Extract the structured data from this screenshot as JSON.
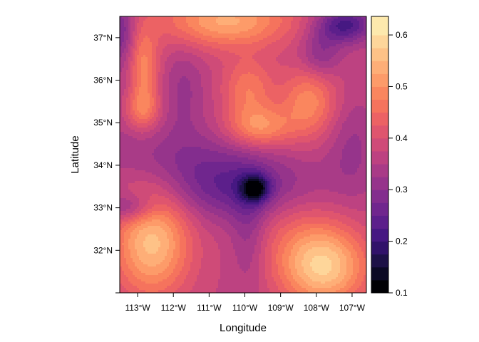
{
  "chart_data": {
    "type": "heatmap",
    "subtype": "filled-contour map",
    "xlabel": "Longitude",
    "ylabel": "Latitude",
    "xlim": [
      -113.5,
      -106.6
    ],
    "ylim": [
      31.0,
      37.5
    ],
    "x_ticks": [
      {
        "value": -113,
        "label": "113°W"
      },
      {
        "value": -112,
        "label": "112°W"
      },
      {
        "value": -111,
        "label": "111°W"
      },
      {
        "value": -110,
        "label": "110°W"
      },
      {
        "value": -109,
        "label": "109°W"
      },
      {
        "value": -108,
        "label": "108°W"
      },
      {
        "value": -107,
        "label": "107°W"
      }
    ],
    "y_ticks": [
      {
        "value": 32,
        "label": "32°N"
      },
      {
        "value": 33,
        "label": "33°N"
      },
      {
        "value": 34,
        "label": "34°N"
      },
      {
        "value": 35,
        "label": "35°N"
      },
      {
        "value": 36,
        "label": "36°N"
      },
      {
        "value": 37,
        "label": "37°N"
      }
    ],
    "colorbar": {
      "min": 0.1,
      "max": 0.636,
      "ticks": [
        0.1,
        0.2,
        0.3,
        0.4,
        0.5,
        0.6
      ],
      "tick_labels": [
        "0.1",
        "0.2",
        "0.3",
        "0.4",
        "0.5",
        "0.6"
      ],
      "levels": [
        0.1,
        0.125,
        0.15,
        0.175,
        0.2,
        0.225,
        0.25,
        0.275,
        0.3,
        0.325,
        0.35,
        0.375,
        0.4,
        0.425,
        0.45,
        0.475,
        0.5,
        0.525,
        0.55,
        0.575,
        0.6,
        0.636
      ],
      "colors": [
        "#000004",
        "#0b0924",
        "#1d1147",
        "#31126a",
        "#461882",
        "#5c1f8b",
        "#70268e",
        "#832d8e",
        "#96348b",
        "#a93b87",
        "#bd4281",
        "#cf4b78",
        "#df556e",
        "#ec6264",
        "#f5735d",
        "#fa865e",
        "#fd9b69",
        "#feae77",
        "#fec287",
        "#fed69a",
        "#fde9ad"
      ]
    },
    "field": {
      "base": 0.37,
      "bumps": [
        {
          "lon": -109.7,
          "lat": 33.45,
          "amp": -0.17,
          "sx": 0.28,
          "sy": 0.22
        },
        {
          "lon": -109.6,
          "lat": 33.5,
          "amp": -0.07,
          "sx": 1.6,
          "sy": 0.55
        },
        {
          "lon": -110.5,
          "lat": 33.4,
          "amp": -0.05,
          "sx": 1.1,
          "sy": 0.55
        },
        {
          "lon": -109.9,
          "lat": 32.4,
          "amp": -0.06,
          "sx": 0.35,
          "sy": 0.9
        },
        {
          "lon": -111.8,
          "lat": 34.2,
          "amp": -0.06,
          "sx": 1.5,
          "sy": 0.6
        },
        {
          "lon": -113.2,
          "lat": 33.0,
          "amp": -0.1,
          "sx": 0.5,
          "sy": 0.25
        },
        {
          "lon": -112.6,
          "lat": 32.2,
          "amp": 0.19,
          "sx": 0.75,
          "sy": 0.9
        },
        {
          "lon": -107.8,
          "lat": 31.6,
          "amp": 0.2,
          "sx": 0.85,
          "sy": 0.65
        },
        {
          "lon": -108.6,
          "lat": 32.6,
          "amp": 0.05,
          "sx": 1.0,
          "sy": 0.8
        },
        {
          "lon": -109.6,
          "lat": 34.9,
          "amp": 0.13,
          "sx": 0.65,
          "sy": 0.35
        },
        {
          "lon": -109.9,
          "lat": 35.8,
          "amp": 0.1,
          "sx": 0.5,
          "sy": 0.5
        },
        {
          "lon": -108.2,
          "lat": 35.5,
          "amp": 0.12,
          "sx": 0.55,
          "sy": 0.6
        },
        {
          "lon": -112.9,
          "lat": 35.3,
          "amp": 0.1,
          "sx": 0.35,
          "sy": 0.35
        },
        {
          "lon": -112.85,
          "lat": 36.3,
          "amp": 0.12,
          "sx": 0.3,
          "sy": 0.65
        },
        {
          "lon": -110.5,
          "lat": 37.4,
          "amp": 0.16,
          "sx": 1.3,
          "sy": 0.45
        },
        {
          "lon": -107.2,
          "lat": 37.3,
          "amp": -0.16,
          "sx": 0.55,
          "sy": 0.3
        },
        {
          "lon": -107.9,
          "lat": 36.6,
          "amp": -0.08,
          "sx": 0.4,
          "sy": 0.4
        },
        {
          "lon": -113.5,
          "lat": 37.2,
          "amp": -0.1,
          "sx": 0.3,
          "sy": 0.5
        },
        {
          "lon": -113.3,
          "lat": 35.8,
          "amp": -0.03,
          "sx": 0.3,
          "sy": 0.8
        },
        {
          "lon": -111.7,
          "lat": 35.8,
          "amp": -0.05,
          "sx": 0.4,
          "sy": 0.7
        },
        {
          "lon": -107.0,
          "lat": 34.5,
          "amp": -0.05,
          "sx": 0.5,
          "sy": 0.8
        }
      ]
    }
  }
}
